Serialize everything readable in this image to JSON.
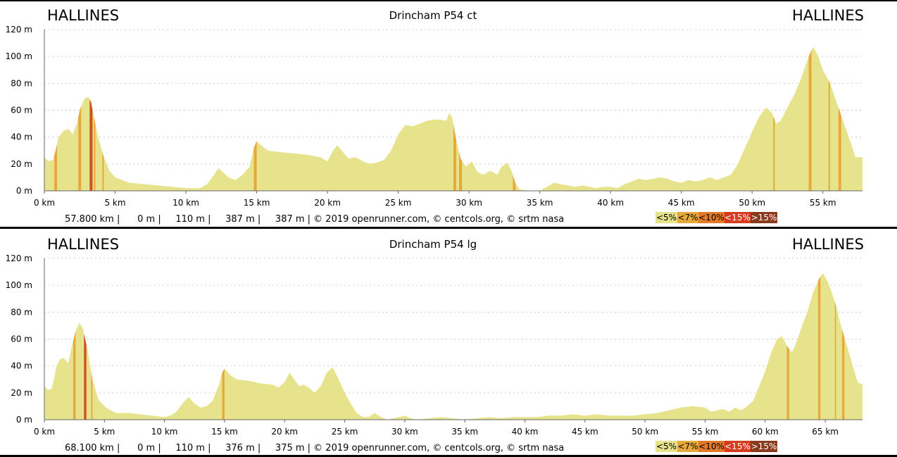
{
  "chart_data": [
    {
      "type": "area",
      "title": "Drincham P54 ct",
      "start_label": "HALLINES",
      "end_label": "HALLINES",
      "x_unit": "km",
      "y_unit": "m",
      "xlim": [
        0,
        57.8
      ],
      "ylim": [
        0,
        120
      ],
      "xticks": [
        0,
        5,
        10,
        15,
        20,
        25,
        30,
        35,
        40,
        45,
        50,
        55
      ],
      "xtick_labels": [
        "0 km",
        "5 km",
        "10 km",
        "15 km",
        "20 km",
        "25 km",
        "30 km",
        "35 km",
        "40 km",
        "45 km",
        "50 km",
        "55 km"
      ],
      "yticks": [
        0,
        20,
        40,
        60,
        80,
        100,
        120
      ],
      "ytick_labels": [
        "0 m",
        "20 m",
        "40 m",
        "60 m",
        "80 m",
        "100 m",
        "120 m"
      ],
      "grid": true,
      "profile": [
        [
          0,
          25
        ],
        [
          0.3,
          22
        ],
        [
          0.6,
          23
        ],
        [
          0.8,
          30
        ],
        [
          1.0,
          40
        ],
        [
          1.4,
          45
        ],
        [
          1.7,
          46
        ],
        [
          2.0,
          42
        ],
        [
          2.3,
          50
        ],
        [
          2.5,
          60
        ],
        [
          2.8,
          68
        ],
        [
          3.1,
          70
        ],
        [
          3.3,
          66
        ],
        [
          3.5,
          55
        ],
        [
          3.8,
          40
        ],
        [
          4.2,
          25
        ],
        [
          4.6,
          15
        ],
        [
          5.0,
          10
        ],
        [
          5.5,
          8
        ],
        [
          6.0,
          6
        ],
        [
          7.0,
          5
        ],
        [
          8.0,
          4
        ],
        [
          9.0,
          3
        ],
        [
          10.0,
          2
        ],
        [
          11.0,
          2
        ],
        [
          11.5,
          5
        ],
        [
          12.0,
          12
        ],
        [
          12.3,
          17
        ],
        [
          12.6,
          14
        ],
        [
          13.0,
          10
        ],
        [
          13.5,
          8
        ],
        [
          14.0,
          12
        ],
        [
          14.5,
          18
        ],
        [
          14.8,
          32
        ],
        [
          15.0,
          37
        ],
        [
          15.3,
          34
        ],
        [
          15.8,
          30
        ],
        [
          16.5,
          29
        ],
        [
          17.5,
          28
        ],
        [
          18.5,
          27
        ],
        [
          19.5,
          25
        ],
        [
          20.0,
          22
        ],
        [
          20.4,
          30
        ],
        [
          20.7,
          34
        ],
        [
          21.0,
          30
        ],
        [
          21.5,
          24
        ],
        [
          22.0,
          25
        ],
        [
          22.5,
          22
        ],
        [
          23.0,
          20
        ],
        [
          23.5,
          21
        ],
        [
          24.0,
          23
        ],
        [
          24.5,
          30
        ],
        [
          25.0,
          42
        ],
        [
          25.5,
          49
        ],
        [
          26.0,
          48
        ],
        [
          26.5,
          50
        ],
        [
          27.0,
          52
        ],
        [
          27.5,
          53
        ],
        [
          28.0,
          53
        ],
        [
          28.4,
          52
        ],
        [
          28.6,
          58
        ],
        [
          28.8,
          55
        ],
        [
          29.1,
          38
        ],
        [
          29.4,
          24
        ],
        [
          29.8,
          18
        ],
        [
          30.2,
          22
        ],
        [
          30.6,
          14
        ],
        [
          31.0,
          12
        ],
        [
          31.5,
          15
        ],
        [
          32.0,
          12
        ],
        [
          32.3,
          18
        ],
        [
          32.7,
          21
        ],
        [
          33.0,
          15
        ],
        [
          33.3,
          5
        ],
        [
          33.6,
          1
        ],
        [
          34.5,
          0
        ],
        [
          35.0,
          0
        ],
        [
          35.5,
          3
        ],
        [
          36.0,
          6
        ],
        [
          36.5,
          5
        ],
        [
          37.0,
          4
        ],
        [
          37.5,
          3
        ],
        [
          38.0,
          4
        ],
        [
          38.5,
          3
        ],
        [
          39.0,
          2
        ],
        [
          39.5,
          3
        ],
        [
          40.0,
          3
        ],
        [
          40.5,
          2
        ],
        [
          41.0,
          5
        ],
        [
          41.5,
          7
        ],
        [
          42.0,
          9
        ],
        [
          42.5,
          8
        ],
        [
          43.0,
          9
        ],
        [
          43.5,
          10
        ],
        [
          44.0,
          9
        ],
        [
          44.5,
          7
        ],
        [
          45.0,
          6
        ],
        [
          45.5,
          8
        ],
        [
          46.0,
          7
        ],
        [
          46.5,
          8
        ],
        [
          47.0,
          10
        ],
        [
          47.5,
          8
        ],
        [
          48.0,
          10
        ],
        [
          48.5,
          12
        ],
        [
          49.0,
          20
        ],
        [
          49.5,
          32
        ],
        [
          50.0,
          44
        ],
        [
          50.5,
          55
        ],
        [
          51.0,
          62
        ],
        [
          51.4,
          58
        ],
        [
          51.7,
          50
        ],
        [
          52.0,
          52
        ],
        [
          52.5,
          62
        ],
        [
          53.0,
          72
        ],
        [
          53.5,
          85
        ],
        [
          54.0,
          100
        ],
        [
          54.3,
          107
        ],
        [
          54.6,
          102
        ],
        [
          55.0,
          90
        ],
        [
          55.5,
          80
        ],
        [
          56.0,
          65
        ],
        [
          56.5,
          50
        ],
        [
          57.0,
          35
        ],
        [
          57.3,
          25
        ],
        [
          57.8,
          25
        ]
      ],
      "steep_segments": [
        [
          0.7,
          0.9,
          "#e8a93b"
        ],
        [
          2.4,
          2.6,
          "#e8a93b"
        ],
        [
          3.2,
          3.4,
          "#d0531d"
        ],
        [
          3.5,
          3.6,
          "#e8a93b"
        ],
        [
          4.1,
          4.2,
          "#e8a93b"
        ],
        [
          14.8,
          15.0,
          "#e8a93b"
        ],
        [
          28.9,
          29.1,
          "#e8a93b"
        ],
        [
          29.3,
          29.5,
          "#e8a93b"
        ],
        [
          33.1,
          33.3,
          "#e8a93b"
        ],
        [
          51.5,
          51.6,
          "#e8a93b"
        ],
        [
          54.0,
          54.2,
          "#e8a93b"
        ],
        [
          55.4,
          55.5,
          "#e8a93b"
        ],
        [
          56.1,
          56.3,
          "#e8a93b"
        ]
      ],
      "stats_line": "57.800 km |      0 m |     110 m |     387 m |     387 m | © 2019 openrunner.com, © centcols.org, © srtm nasa",
      "legend": [
        {
          "label": "<5%",
          "color": "#e6e38c"
        },
        {
          "label": "<7%",
          "color": "#e8a93b"
        },
        {
          "label": "<10%",
          "color": "#e27a2a"
        },
        {
          "label": "<15%",
          "color": "#d83a1e"
        },
        {
          "label": ">15%",
          "color": "#8b3a1c"
        }
      ]
    },
    {
      "type": "area",
      "title": "Drincham P54 lg",
      "start_label": "HALLINES",
      "end_label": "HALLINES",
      "x_unit": "km",
      "y_unit": "m",
      "xlim": [
        0,
        68.1
      ],
      "ylim": [
        0,
        120
      ],
      "xticks": [
        0,
        5,
        10,
        15,
        20,
        25,
        30,
        35,
        40,
        45,
        50,
        55,
        60,
        65
      ],
      "xtick_labels": [
        "0 km",
        "5 km",
        "10 km",
        "15 km",
        "20 km",
        "25 km",
        "30 km",
        "35 km",
        "40 km",
        "45 km",
        "50 km",
        "55 km",
        "60 km",
        "65 km"
      ],
      "yticks": [
        0,
        20,
        40,
        60,
        80,
        100,
        120
      ],
      "ytick_labels": [
        "0 m",
        "20 m",
        "40 m",
        "60 m",
        "80 m",
        "100 m",
        "120 m"
      ],
      "grid": true,
      "profile": [
        [
          0,
          25
        ],
        [
          0.3,
          22
        ],
        [
          0.6,
          23
        ],
        [
          0.8,
          30
        ],
        [
          1.0,
          40
        ],
        [
          1.3,
          45
        ],
        [
          1.6,
          46
        ],
        [
          2.0,
          42
        ],
        [
          2.3,
          55
        ],
        [
          2.6,
          66
        ],
        [
          2.9,
          72
        ],
        [
          3.2,
          68
        ],
        [
          3.6,
          52
        ],
        [
          4.0,
          30
        ],
        [
          4.5,
          15
        ],
        [
          5.0,
          10
        ],
        [
          5.5,
          7
        ],
        [
          6.0,
          5
        ],
        [
          7.0,
          5
        ],
        [
          8.0,
          4
        ],
        [
          9.0,
          3
        ],
        [
          10.0,
          2
        ],
        [
          10.5,
          3
        ],
        [
          11.0,
          6
        ],
        [
          11.5,
          12
        ],
        [
          12.0,
          17
        ],
        [
          12.5,
          12
        ],
        [
          13.0,
          9
        ],
        [
          13.5,
          10
        ],
        [
          14.0,
          14
        ],
        [
          14.5,
          25
        ],
        [
          14.8,
          35
        ],
        [
          15.0,
          38
        ],
        [
          15.5,
          33
        ],
        [
          16.0,
          30
        ],
        [
          17.0,
          29
        ],
        [
          18.0,
          27
        ],
        [
          19.0,
          26
        ],
        [
          19.5,
          24
        ],
        [
          20.0,
          28
        ],
        [
          20.4,
          35
        ],
        [
          20.8,
          30
        ],
        [
          21.2,
          25
        ],
        [
          21.6,
          26
        ],
        [
          22.0,
          24
        ],
        [
          22.5,
          20
        ],
        [
          23.0,
          25
        ],
        [
          23.5,
          35
        ],
        [
          24.0,
          39
        ],
        [
          24.5,
          30
        ],
        [
          25.0,
          20
        ],
        [
          25.5,
          12
        ],
        [
          26.0,
          5
        ],
        [
          26.5,
          2
        ],
        [
          27.0,
          2
        ],
        [
          27.5,
          5
        ],
        [
          28.0,
          2
        ],
        [
          28.5,
          0
        ],
        [
          29.0,
          1
        ],
        [
          29.5,
          2
        ],
        [
          30.0,
          3
        ],
        [
          30.5,
          1
        ],
        [
          31.0,
          0
        ],
        [
          32.0,
          1
        ],
        [
          33.0,
          2
        ],
        [
          34.0,
          1
        ],
        [
          35.0,
          0
        ],
        [
          36.0,
          1
        ],
        [
          37.0,
          2
        ],
        [
          38.0,
          1
        ],
        [
          39.0,
          2
        ],
        [
          40.0,
          2
        ],
        [
          41.0,
          2
        ],
        [
          42.0,
          3
        ],
        [
          43.0,
          3
        ],
        [
          44.0,
          4
        ],
        [
          45.0,
          3
        ],
        [
          46.0,
          4
        ],
        [
          47.0,
          3
        ],
        [
          48.0,
          3
        ],
        [
          49.0,
          3
        ],
        [
          50.0,
          4
        ],
        [
          51.0,
          5
        ],
        [
          52.0,
          7
        ],
        [
          53.0,
          9
        ],
        [
          54.0,
          10
        ],
        [
          55.0,
          9
        ],
        [
          55.5,
          6
        ],
        [
          56.0,
          7
        ],
        [
          56.5,
          8
        ],
        [
          57.0,
          6
        ],
        [
          57.5,
          9
        ],
        [
          58.0,
          7
        ],
        [
          58.5,
          10
        ],
        [
          59.0,
          14
        ],
        [
          59.5,
          25
        ],
        [
          60.0,
          36
        ],
        [
          60.5,
          50
        ],
        [
          61.0,
          60
        ],
        [
          61.4,
          62
        ],
        [
          61.8,
          55
        ],
        [
          62.2,
          50
        ],
        [
          62.5,
          55
        ],
        [
          63.0,
          68
        ],
        [
          63.5,
          80
        ],
        [
          64.0,
          95
        ],
        [
          64.5,
          105
        ],
        [
          64.8,
          109
        ],
        [
          65.2,
          103
        ],
        [
          65.8,
          88
        ],
        [
          66.3,
          70
        ],
        [
          66.8,
          55
        ],
        [
          67.3,
          40
        ],
        [
          67.7,
          28
        ],
        [
          68.1,
          26
        ]
      ],
      "steep_segments": [
        [
          2.4,
          2.6,
          "#e8a93b"
        ],
        [
          3.3,
          3.5,
          "#d0531d"
        ],
        [
          3.9,
          4.0,
          "#e8a93b"
        ],
        [
          14.8,
          15.0,
          "#e8a93b"
        ],
        [
          61.8,
          62.0,
          "#e8a93b"
        ],
        [
          64.4,
          64.6,
          "#e8a93b"
        ],
        [
          65.8,
          65.9,
          "#e8a93b"
        ],
        [
          66.4,
          66.6,
          "#e8a93b"
        ]
      ],
      "stats_line": "68.100 km |      0 m |     110 m |     376 m |     375 m | © 2019 openrunner.com, © centcols.org, © srtm nasa",
      "legend": [
        {
          "label": "<5%",
          "color": "#e6e38c"
        },
        {
          "label": "<7%",
          "color": "#e8a93b"
        },
        {
          "label": "<10%",
          "color": "#e27a2a"
        },
        {
          "label": "<15%",
          "color": "#d83a1e"
        },
        {
          "label": ">15%",
          "color": "#8b3a1c"
        }
      ]
    }
  ],
  "colors": {
    "fill": "#e6e38c",
    "grid": "#cccccc",
    "axis": "#333333"
  }
}
